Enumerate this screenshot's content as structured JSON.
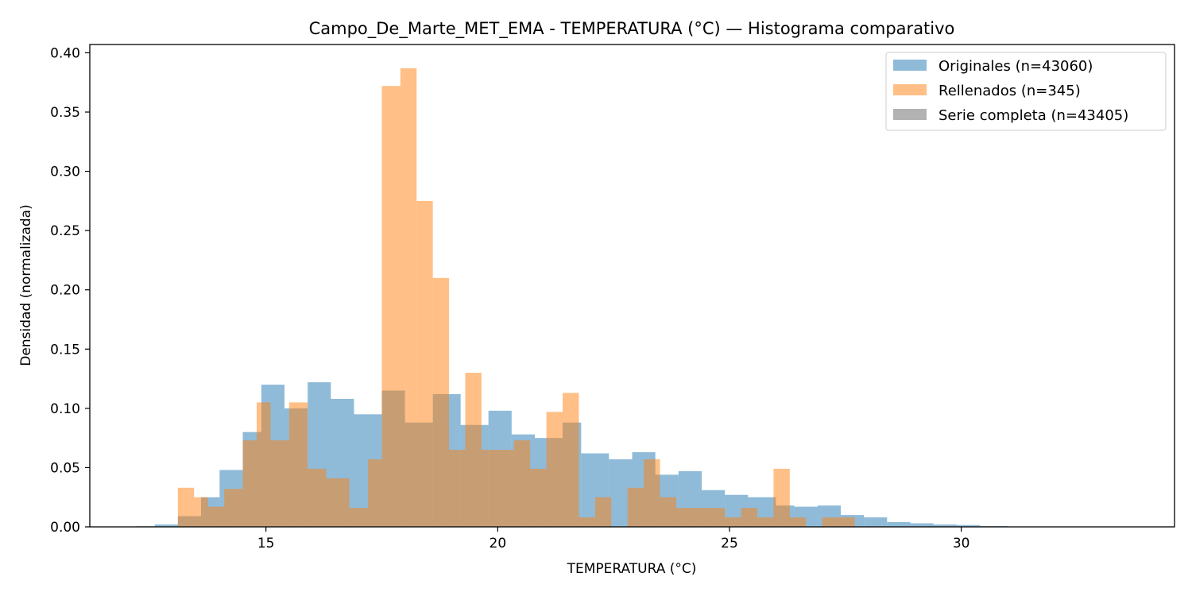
{
  "chart_data": {
    "type": "bar",
    "title": "Campo_De_Marte_MET_EMA - TEMPERATURA (°C) — Histograma comparativo",
    "xlabel": "TEMPERATURA (°C)",
    "ylabel": "Densidad (normalizada)",
    "xlim": [
      11.2,
      34.6
    ],
    "ylim": [
      0,
      0.407
    ],
    "x_ticks": [
      15,
      20,
      25,
      30
    ],
    "y_ticks": [
      0.0,
      0.05,
      0.1,
      0.15,
      0.2,
      0.25,
      0.3,
      0.35,
      0.4
    ],
    "x_tick_labels": [
      "15",
      "20",
      "25",
      "30"
    ],
    "y_tick_labels": [
      "0.00",
      "0.05",
      "0.10",
      "0.15",
      "0.20",
      "0.25",
      "0.30",
      "0.35",
      "0.40"
    ],
    "legend_position": "top-right",
    "series": [
      {
        "name": "Originales (n=43060)",
        "color": "#1f77b4",
        "opacity": 0.5,
        "bins": [
          [
            12.2,
            12.6,
            0.0005
          ],
          [
            12.6,
            13.1,
            0.002
          ],
          [
            13.1,
            13.6,
            0.009
          ],
          [
            13.6,
            14.0,
            0.025
          ],
          [
            14.0,
            14.5,
            0.048
          ],
          [
            14.5,
            14.9,
            0.08
          ],
          [
            14.9,
            15.4,
            0.12
          ],
          [
            15.4,
            15.9,
            0.1
          ],
          [
            15.9,
            16.4,
            0.122
          ],
          [
            16.4,
            16.9,
            0.108
          ],
          [
            16.9,
            17.5,
            0.095
          ],
          [
            17.5,
            18.0,
            0.115
          ],
          [
            18.0,
            18.6,
            0.088
          ],
          [
            18.6,
            19.2,
            0.112
          ],
          [
            19.2,
            19.8,
            0.086
          ],
          [
            19.8,
            20.3,
            0.098
          ],
          [
            20.3,
            20.8,
            0.078
          ],
          [
            20.8,
            21.4,
            0.075
          ],
          [
            21.4,
            21.8,
            0.088
          ],
          [
            21.8,
            22.4,
            0.062
          ],
          [
            22.4,
            22.9,
            0.057
          ],
          [
            22.9,
            23.4,
            0.063
          ],
          [
            23.4,
            23.9,
            0.044
          ],
          [
            23.9,
            24.4,
            0.047
          ],
          [
            24.4,
            24.9,
            0.031
          ],
          [
            24.9,
            25.4,
            0.027
          ],
          [
            25.4,
            26.0,
            0.025
          ],
          [
            26.0,
            26.4,
            0.018
          ],
          [
            26.4,
            26.9,
            0.017
          ],
          [
            26.9,
            27.4,
            0.018
          ],
          [
            27.4,
            27.9,
            0.01
          ],
          [
            27.9,
            28.4,
            0.008
          ],
          [
            28.4,
            28.9,
            0.004
          ],
          [
            28.9,
            29.4,
            0.003
          ],
          [
            29.4,
            29.9,
            0.002
          ],
          [
            29.9,
            30.4,
            0.0015
          ],
          [
            30.4,
            31.0,
            0.0006
          ],
          [
            31.0,
            31.5,
            0.0003
          ],
          [
            31.5,
            32.1,
            0.0002
          ]
        ]
      },
      {
        "name": "Rellenados (n=345)",
        "color": "#ff7f0e",
        "opacity": 0.5,
        "bins": [
          [
            13.1,
            13.45,
            0.033
          ],
          [
            13.45,
            13.75,
            0.025
          ],
          [
            13.75,
            14.1,
            0.017
          ],
          [
            14.1,
            14.5,
            0.032
          ],
          [
            14.5,
            14.8,
            0.073
          ],
          [
            14.8,
            15.1,
            0.105
          ],
          [
            15.1,
            15.5,
            0.073
          ],
          [
            15.5,
            15.9,
            0.105
          ],
          [
            15.9,
            16.3,
            0.049
          ],
          [
            16.3,
            16.8,
            0.041
          ],
          [
            16.8,
            17.2,
            0.016
          ],
          [
            17.2,
            17.5,
            0.057
          ],
          [
            17.5,
            17.9,
            0.372
          ],
          [
            17.9,
            18.25,
            0.387
          ],
          [
            18.25,
            18.6,
            0.275
          ],
          [
            18.6,
            18.95,
            0.21
          ],
          [
            18.95,
            19.3,
            0.065
          ],
          [
            19.3,
            19.65,
            0.13
          ],
          [
            19.65,
            20.0,
            0.065
          ],
          [
            20.0,
            20.35,
            0.065
          ],
          [
            20.35,
            20.7,
            0.073
          ],
          [
            20.7,
            21.05,
            0.049
          ],
          [
            21.05,
            21.4,
            0.097
          ],
          [
            21.4,
            21.75,
            0.113
          ],
          [
            21.75,
            22.1,
            0.008
          ],
          [
            22.1,
            22.45,
            0.025
          ],
          [
            22.45,
            22.8,
            0.0
          ],
          [
            22.8,
            23.15,
            0.033
          ],
          [
            23.15,
            23.5,
            0.057
          ],
          [
            23.5,
            23.85,
            0.025
          ],
          [
            23.85,
            24.2,
            0.016
          ],
          [
            24.2,
            24.55,
            0.016
          ],
          [
            24.55,
            24.9,
            0.016
          ],
          [
            24.9,
            25.25,
            0.008
          ],
          [
            25.25,
            25.6,
            0.016
          ],
          [
            25.6,
            25.95,
            0.008
          ],
          [
            25.95,
            26.3,
            0.049
          ],
          [
            26.3,
            26.65,
            0.008
          ],
          [
            26.65,
            27.0,
            0.0
          ],
          [
            27.0,
            27.35,
            0.008
          ],
          [
            27.35,
            27.7,
            0.008
          ]
        ]
      },
      {
        "name": "Serie completa (n=43405)",
        "color": "#7f7f7f",
        "opacity": 0.6,
        "bins": []
      }
    ]
  }
}
